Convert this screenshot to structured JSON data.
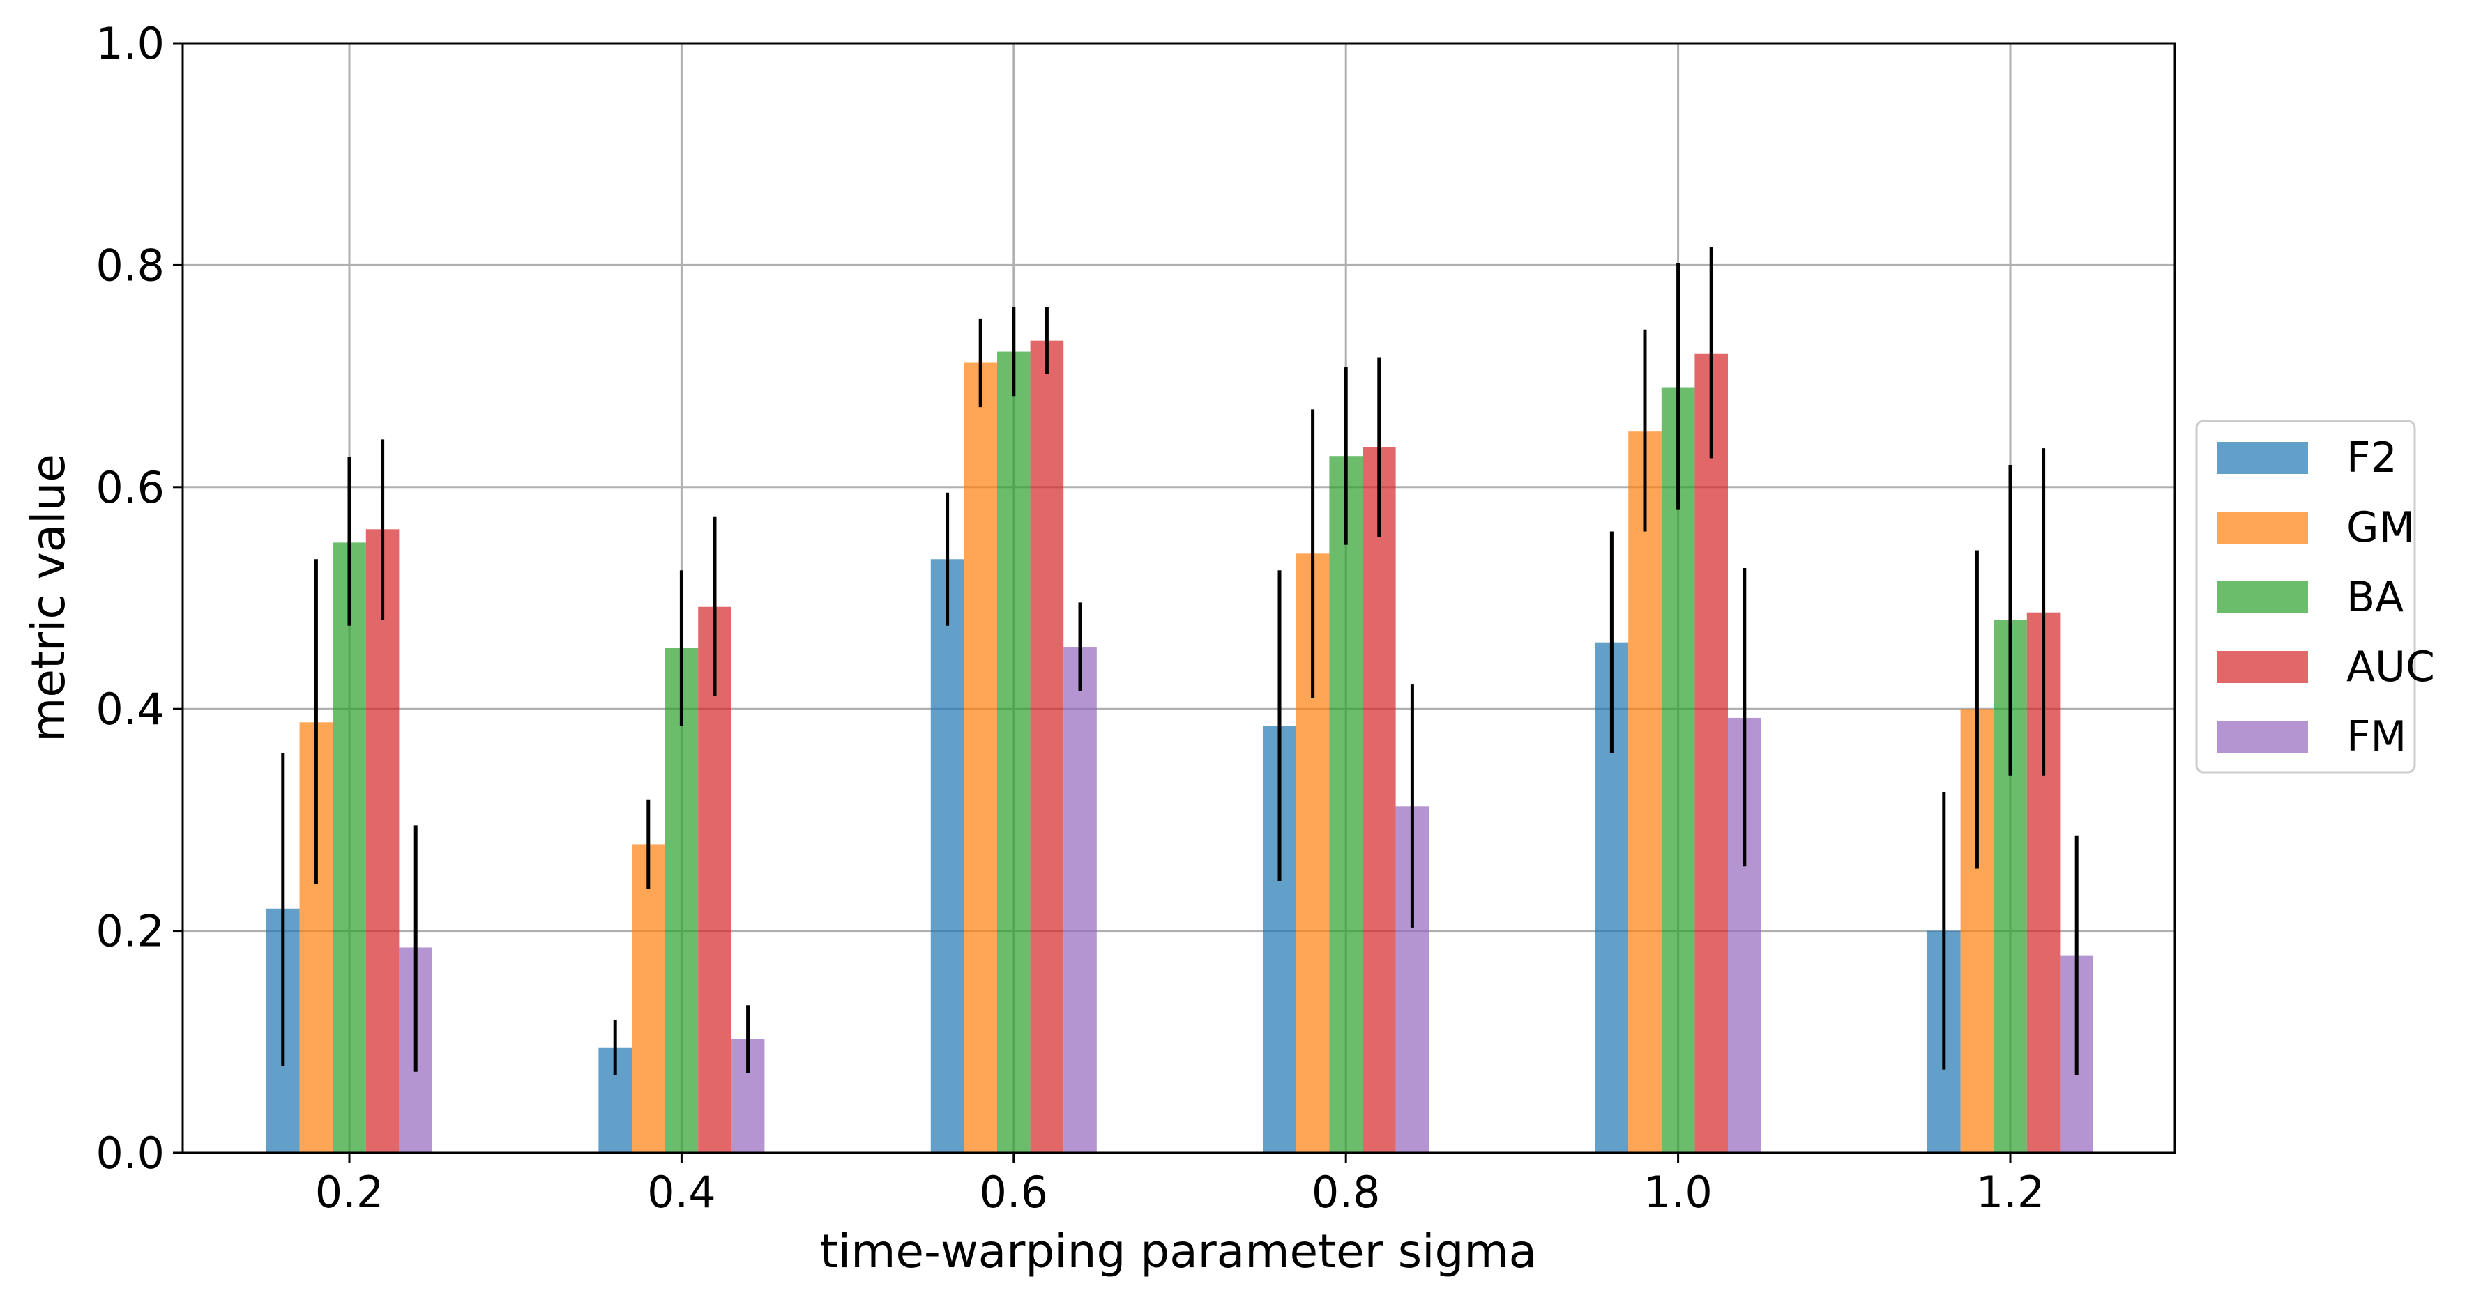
{
  "chart_data": {
    "type": "bar",
    "title": "",
    "xlabel": "time-warping parameter sigma",
    "ylabel": "metric value",
    "ylim": [
      0,
      1.0
    ],
    "yticks": [
      "0.0",
      "0.2",
      "0.4",
      "0.6",
      "0.8",
      "1.0"
    ],
    "categories": [
      "0.2",
      "0.4",
      "0.6",
      "0.8",
      "1.0",
      "1.2"
    ],
    "grid": true,
    "legend_position": "right, outside plot",
    "error_bars": true,
    "series": [
      {
        "name": "F2",
        "color": "#1f77b4",
        "values": [
          0.22,
          0.095,
          0.535,
          0.385,
          0.46,
          0.2
        ],
        "err_low": [
          0.078,
          0.07,
          0.475,
          0.245,
          0.36,
          0.075
        ],
        "err_high": [
          0.36,
          0.12,
          0.595,
          0.525,
          0.56,
          0.325
        ]
      },
      {
        "name": "GM",
        "color": "#ff7f0e",
        "values": [
          0.388,
          0.278,
          0.712,
          0.54,
          0.65,
          0.4
        ],
        "err_low": [
          0.242,
          0.238,
          0.672,
          0.41,
          0.56,
          0.256
        ],
        "err_high": [
          0.535,
          0.318,
          0.752,
          0.67,
          0.742,
          0.543
        ]
      },
      {
        "name": "BA",
        "color": "#2ca02c",
        "values": [
          0.55,
          0.455,
          0.722,
          0.628,
          0.69,
          0.48
        ],
        "err_low": [
          0.475,
          0.385,
          0.682,
          0.548,
          0.58,
          0.34
        ],
        "err_high": [
          0.627,
          0.525,
          0.762,
          0.708,
          0.802,
          0.62
        ]
      },
      {
        "name": "AUC",
        "color": "#d62728",
        "values": [
          0.562,
          0.492,
          0.732,
          0.636,
          0.72,
          0.487
        ],
        "err_low": [
          0.48,
          0.412,
          0.702,
          0.555,
          0.626,
          0.34
        ],
        "err_high": [
          0.643,
          0.573,
          0.762,
          0.717,
          0.816,
          0.635
        ]
      },
      {
        "name": "FM",
        "color": "#9467bd",
        "values": [
          0.185,
          0.103,
          0.456,
          0.312,
          0.392,
          0.178
        ],
        "err_low": [
          0.073,
          0.072,
          0.416,
          0.203,
          0.258,
          0.07
        ],
        "err_high": [
          0.295,
          0.133,
          0.496,
          0.422,
          0.527,
          0.286
        ]
      }
    ]
  }
}
